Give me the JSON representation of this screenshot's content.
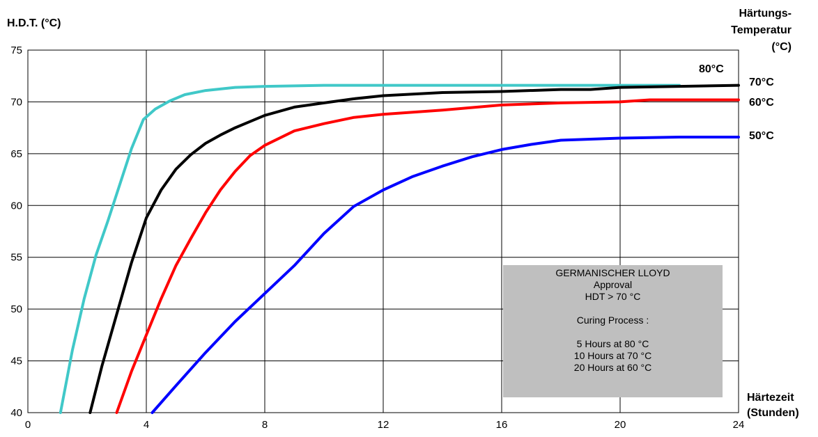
{
  "chart_data": {
    "type": "line",
    "ylabel": "H.D.T. (°C)",
    "legend_title": [
      "Härtungs-",
      "Temperatur",
      "(°C)"
    ],
    "xlabel": [
      "Härtezeit",
      "(Stunden)"
    ],
    "xlim": [
      0,
      24
    ],
    "ylim": [
      40,
      75
    ],
    "xticks": [
      0,
      4,
      8,
      12,
      16,
      20,
      24
    ],
    "yticks": [
      40,
      45,
      50,
      55,
      60,
      65,
      70,
      75
    ],
    "grid": true,
    "series": [
      {
        "name": "80°C",
        "color": "#40c8c8",
        "points": [
          [
            1.1,
            40
          ],
          [
            1.5,
            46
          ],
          [
            1.9,
            51
          ],
          [
            2.3,
            55.2
          ],
          [
            2.7,
            58.5
          ],
          [
            3.1,
            62
          ],
          [
            3.5,
            65.5
          ],
          [
            3.9,
            68.3
          ],
          [
            4.3,
            69.3
          ],
          [
            4.8,
            70.1
          ],
          [
            5.3,
            70.7
          ],
          [
            6.0,
            71.1
          ],
          [
            7.0,
            71.4
          ],
          [
            8.0,
            71.5
          ],
          [
            10,
            71.6
          ],
          [
            14,
            71.6
          ],
          [
            18,
            71.6
          ],
          [
            22,
            71.6
          ]
        ]
      },
      {
        "name": "70°C",
        "color": "#000000",
        "points": [
          [
            2.1,
            40
          ],
          [
            2.5,
            44.5
          ],
          [
            3.0,
            49.5
          ],
          [
            3.5,
            54.5
          ],
          [
            4.0,
            58.8
          ],
          [
            4.5,
            61.5
          ],
          [
            5.0,
            63.5
          ],
          [
            5.5,
            64.9
          ],
          [
            6.0,
            66
          ],
          [
            6.5,
            66.8
          ],
          [
            7.0,
            67.5
          ],
          [
            7.5,
            68.1
          ],
          [
            8.0,
            68.7
          ],
          [
            9.0,
            69.5
          ],
          [
            10,
            69.9
          ],
          [
            11,
            70.3
          ],
          [
            12,
            70.6
          ],
          [
            14,
            70.9
          ],
          [
            16,
            71.0
          ],
          [
            18,
            71.2
          ],
          [
            19,
            71.2
          ],
          [
            20,
            71.4
          ],
          [
            22,
            71.5
          ],
          [
            24,
            71.6
          ]
        ]
      },
      {
        "name": "60°C",
        "color": "#ff0000",
        "points": [
          [
            3.0,
            40
          ],
          [
            3.5,
            44
          ],
          [
            4.0,
            47.5
          ],
          [
            4.5,
            51
          ],
          [
            5.0,
            54.2
          ],
          [
            5.5,
            56.8
          ],
          [
            6.0,
            59.3
          ],
          [
            6.5,
            61.5
          ],
          [
            7.0,
            63.3
          ],
          [
            7.5,
            64.8
          ],
          [
            8.0,
            65.8
          ],
          [
            9.0,
            67.2
          ],
          [
            10,
            67.9
          ],
          [
            11,
            68.5
          ],
          [
            12,
            68.8
          ],
          [
            14,
            69.2
          ],
          [
            16,
            69.7
          ],
          [
            18,
            69.9
          ],
          [
            20,
            70.0
          ],
          [
            21,
            70.2
          ],
          [
            22,
            70.2
          ],
          [
            24,
            70.2
          ]
        ]
      },
      {
        "name": "50°C",
        "color": "#0000ff",
        "points": [
          [
            4.2,
            40
          ],
          [
            5.0,
            42.6
          ],
          [
            6.0,
            45.8
          ],
          [
            7.0,
            48.8
          ],
          [
            8.0,
            51.5
          ],
          [
            9.0,
            54.2
          ],
          [
            10,
            57.3
          ],
          [
            11,
            59.9
          ],
          [
            12,
            61.5
          ],
          [
            13,
            62.8
          ],
          [
            14,
            63.8
          ],
          [
            15,
            64.7
          ],
          [
            16,
            65.4
          ],
          [
            17,
            65.9
          ],
          [
            18,
            66.3
          ],
          [
            20,
            66.5
          ],
          [
            22,
            66.6
          ],
          [
            24,
            66.6
          ]
        ]
      }
    ]
  },
  "info_box": {
    "lines": [
      "GERMANISCHER LLOYD",
      "Approval",
      "HDT > 70 °C",
      "",
      "Curing Process :",
      "",
      "5 Hours at 80 °C",
      "10 Hours at 70 °C",
      "20 Hours at  60 °C"
    ]
  }
}
